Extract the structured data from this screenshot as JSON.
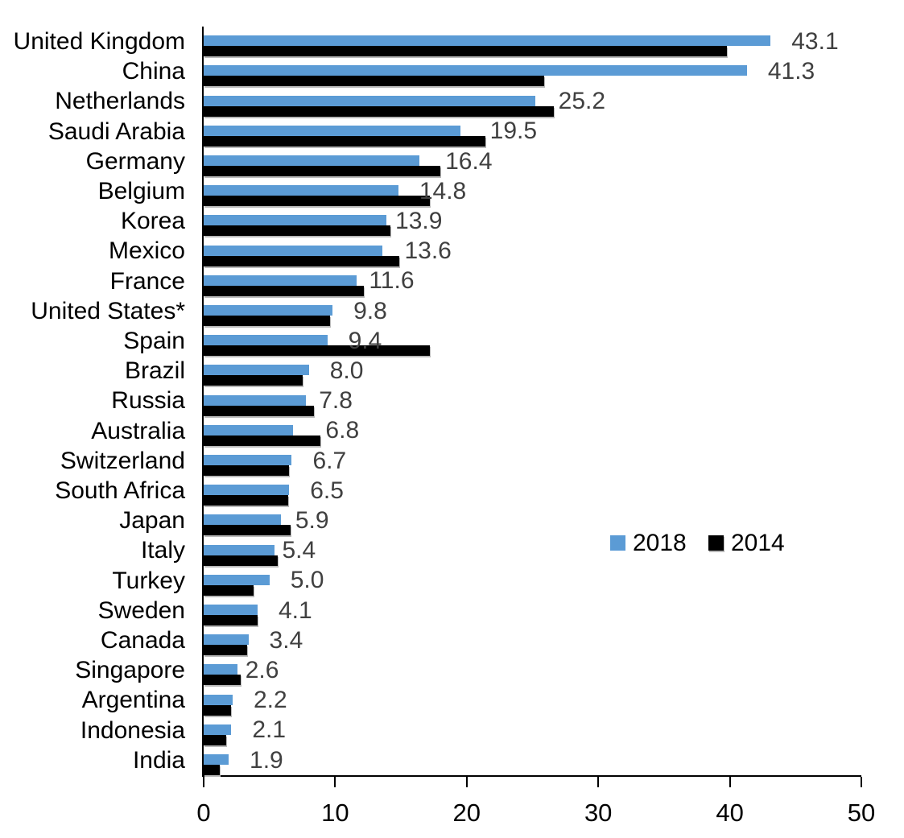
{
  "chart_data": {
    "type": "bar",
    "orientation": "horizontal",
    "title": "",
    "xlabel": "",
    "ylabel": "",
    "grid": false,
    "categories": [
      "United Kingdom",
      "China",
      "Netherlands",
      "Saudi Arabia",
      "Germany",
      "Belgium",
      "Korea",
      "Mexico",
      "France",
      "United States*",
      "Spain",
      "Brazil",
      "Russia",
      "Australia",
      "Switzerland",
      "South Africa",
      "Japan",
      "Italy",
      "Turkey",
      "Sweden",
      "Canada",
      "Singapore",
      "Argentina",
      "Indonesia",
      "India"
    ],
    "series": [
      {
        "name": "2018",
        "color": "#5B9BD5",
        "values": [
          43.1,
          41.3,
          25.2,
          19.5,
          16.4,
          14.8,
          13.9,
          13.6,
          11.6,
          9.8,
          9.4,
          8.0,
          7.8,
          6.8,
          6.7,
          6.5,
          5.9,
          5.4,
          5.0,
          4.1,
          3.4,
          2.6,
          2.2,
          2.1,
          1.9
        ]
      },
      {
        "name": "2014",
        "color": "#000000",
        "values": [
          39.8,
          25.9,
          26.6,
          21.4,
          18.0,
          17.2,
          14.2,
          14.9,
          12.2,
          9.6,
          17.2,
          7.5,
          8.4,
          8.9,
          6.5,
          6.4,
          6.6,
          5.6,
          3.8,
          4.1,
          3.3,
          2.8,
          2.1,
          1.7,
          1.2
        ]
      }
    ],
    "data_labels": {
      "series": "2018",
      "labels": [
        "43.1",
        "41.3",
        "25.2",
        "19.5",
        "16.4",
        "14.8",
        "13.9",
        "13.6",
        "11.6",
        "9.8",
        "9.4",
        "8.0",
        "7.8",
        "6.8",
        "6.7",
        "6.5",
        "5.9",
        "5.4",
        "5.0",
        "4.1",
        "3.4",
        "2.6",
        "2.2",
        "2.1",
        "1.9"
      ],
      "color": "#404040"
    },
    "x_axis": {
      "min": 0,
      "max": 50,
      "tick_values": [
        0,
        10,
        20,
        30,
        40,
        50
      ],
      "tick_labels": [
        "0",
        "10",
        "20",
        "30",
        "40",
        "50"
      ]
    },
    "legend": {
      "position": "middle-right",
      "entries": [
        "2018",
        "2014"
      ]
    },
    "colors": {
      "axis": "#000000",
      "category_label": "#000000",
      "tick_label": "#000000",
      "background": "#ffffff"
    }
  }
}
